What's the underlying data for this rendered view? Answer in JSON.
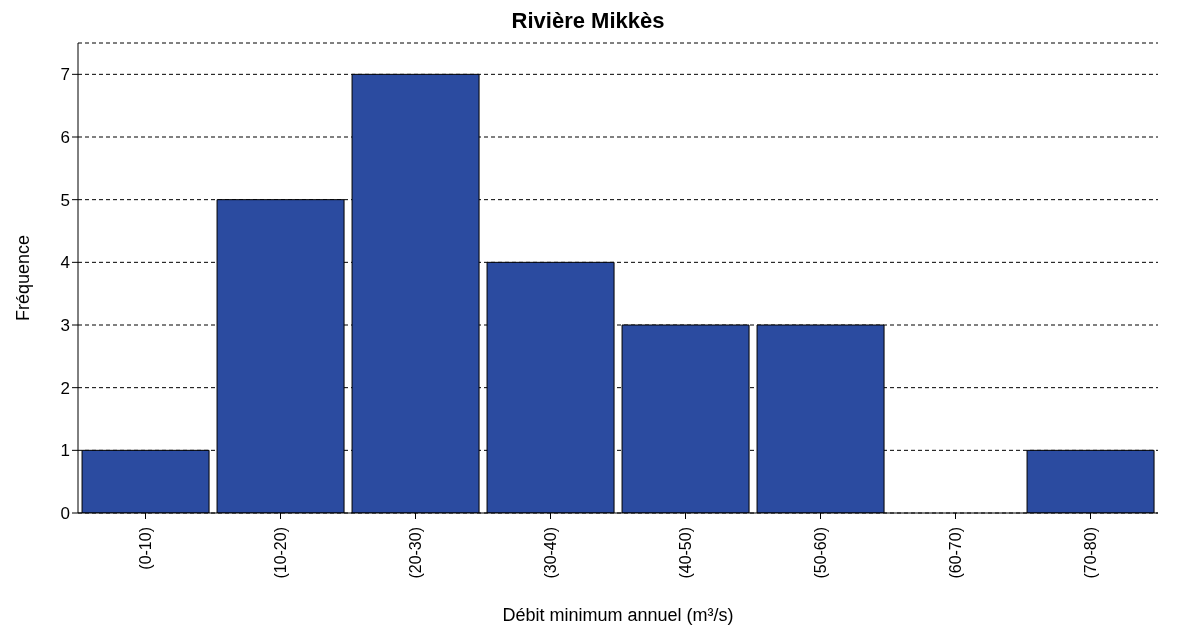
{
  "chart_data": {
    "type": "bar",
    "title": "Rivière Mikkès",
    "xlabel": "Débit minimum annuel (m³/s)",
    "ylabel": "Fréquence",
    "categories": [
      "(0-10)",
      "(10-20)",
      "(20-30)",
      "(30-40)",
      "(40-50)",
      "(50-60)",
      "(60-70)",
      "(70-80)"
    ],
    "values": [
      1,
      5,
      7,
      4,
      3,
      3,
      0,
      1
    ],
    "color": "#2b4ba0",
    "ylim": [
      0,
      7.5
    ],
    "yticks": [
      0,
      1,
      2,
      3,
      4,
      5,
      6,
      7
    ],
    "grid": "y",
    "line_style": "dashed"
  }
}
